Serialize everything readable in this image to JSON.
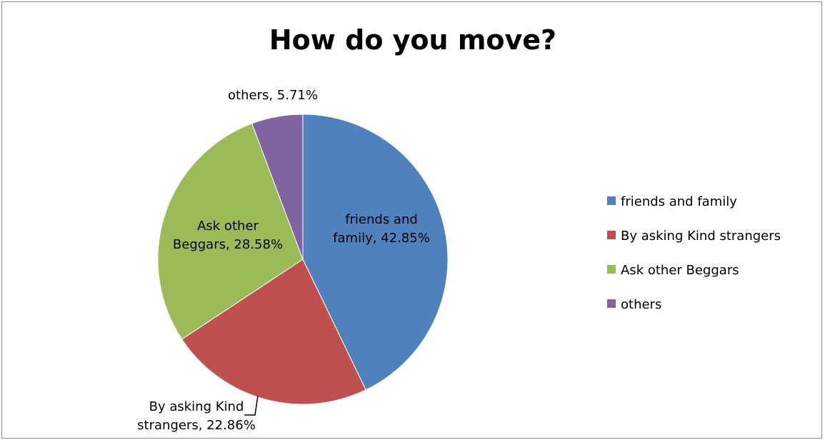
{
  "chart_data": {
    "type": "pie",
    "title": "How do  you move?",
    "slices": [
      {
        "label": "friends and family",
        "value": 42.85,
        "color": "#4F81BD",
        "data_label": [
          "friends and",
          "family, 42.85%"
        ]
      },
      {
        "label": "By asking Kind strangers",
        "value": 22.86,
        "color": "#C0504D",
        "data_label": [
          "By asking Kind",
          "strangers, 22.86%"
        ]
      },
      {
        "label": "Ask other Beggars",
        "value": 28.58,
        "color": "#9BBB59",
        "data_label": [
          "Ask other",
          "Beggars, 28.58%"
        ]
      },
      {
        "label": "others",
        "value": 5.71,
        "color": "#8064A2",
        "data_label": [
          "others, 5.71%"
        ]
      }
    ],
    "legend_position": "right"
  }
}
